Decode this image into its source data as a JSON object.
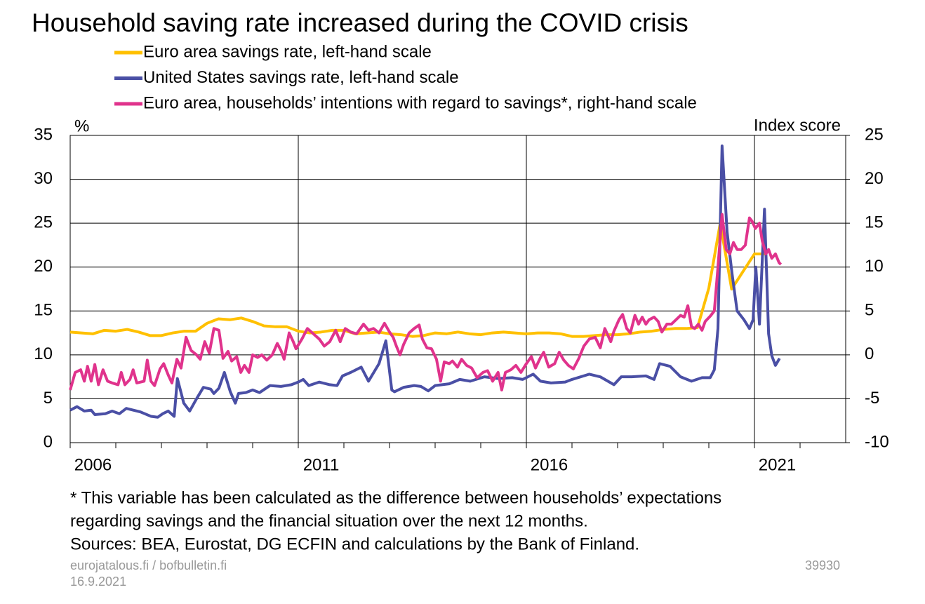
{
  "chart_data": {
    "type": "line",
    "title": "Household saving rate increased during the COVID crisis",
    "ylabel": "%",
    "y2label": "Index score",
    "xlim": [
      2006,
      2023
    ],
    "xticks": [
      2006,
      2011,
      2016,
      2021
    ],
    "xminorticks": [
      2007,
      2008,
      2009,
      2010,
      2012,
      2013,
      2014,
      2015,
      2017,
      2018,
      2019,
      2020,
      2022
    ],
    "ylim": [
      0,
      35
    ],
    "yticks": [
      0,
      5,
      10,
      15,
      20,
      25,
      30,
      35
    ],
    "y2lim": [
      -10,
      25
    ],
    "y2ticks": [
      -10,
      -5,
      0,
      5,
      10,
      15,
      20,
      25
    ],
    "grid": true,
    "series": [
      {
        "name": "Euro area savings rate, left-hand scale",
        "color": "#ffc000",
        "axis": "y",
        "x": [
          2006,
          2006.25,
          2006.5,
          2006.75,
          2007,
          2007.25,
          2007.5,
          2007.75,
          2008,
          2008.25,
          2008.5,
          2008.75,
          2009,
          2009.25,
          2009.5,
          2009.75,
          2010,
          2010.25,
          2010.5,
          2010.75,
          2011,
          2011.25,
          2011.5,
          2011.75,
          2012,
          2012.25,
          2012.5,
          2012.75,
          2013,
          2013.25,
          2013.5,
          2013.75,
          2014,
          2014.25,
          2014.5,
          2014.75,
          2015,
          2015.25,
          2015.5,
          2015.75,
          2016,
          2016.25,
          2016.5,
          2016.75,
          2017,
          2017.25,
          2017.5,
          2017.75,
          2018,
          2018.25,
          2018.5,
          2018.75,
          2019,
          2019.25,
          2019.5,
          2019.75,
          2020,
          2020.25,
          2020.5,
          2020.75,
          2021,
          2021.25
        ],
        "values": [
          12.6,
          12.5,
          12.4,
          12.8,
          12.7,
          12.9,
          12.6,
          12.2,
          12.2,
          12.5,
          12.7,
          12.7,
          13.6,
          14.1,
          14.0,
          14.2,
          13.8,
          13.3,
          13.2,
          13.2,
          12.7,
          12.5,
          12.6,
          12.8,
          12.8,
          12.4,
          12.5,
          12.6,
          12.4,
          12.3,
          12.1,
          12.2,
          12.5,
          12.4,
          12.6,
          12.4,
          12.3,
          12.5,
          12.6,
          12.5,
          12.4,
          12.5,
          12.5,
          12.4,
          12.1,
          12.1,
          12.2,
          12.3,
          12.3,
          12.4,
          12.6,
          12.7,
          12.9,
          13.0,
          13.0,
          13.1,
          17.6,
          25.0,
          17.5,
          19.5,
          21.5,
          21.5
        ]
      },
      {
        "name": "United States savings rate, left-hand scale",
        "color": "#4a4fa5",
        "axis": "y",
        "x": [
          2006,
          2006.15,
          2006.31,
          2006.46,
          2006.54,
          2006.77,
          2006.92,
          2007.08,
          2007.23,
          2007.54,
          2007.77,
          2007.92,
          2008.03,
          2008.15,
          2008.28,
          2008.35,
          2008.49,
          2008.62,
          2008.77,
          2008.92,
          2009.08,
          2009.15,
          2009.26,
          2009.38,
          2009.51,
          2009.62,
          2009.69,
          2009.85,
          2010,
          2010.15,
          2010.38,
          2010.62,
          2010.85,
          2011,
          2011.11,
          2011.23,
          2011.46,
          2011.69,
          2011.85,
          2011.97,
          2012.15,
          2012.38,
          2012.54,
          2012.77,
          2012.92,
          2013.05,
          2013.11,
          2013.31,
          2013.54,
          2013.69,
          2013.85,
          2014,
          2014.31,
          2014.54,
          2014.77,
          2015.08,
          2015.38,
          2015.69,
          2015.92,
          2016.15,
          2016.31,
          2016.54,
          2016.85,
          2017,
          2017.38,
          2017.62,
          2017.92,
          2018.08,
          2018.31,
          2018.62,
          2018.8,
          2018.92,
          2019.15,
          2019.38,
          2019.62,
          2019.85,
          2020.03,
          2020.12,
          2020.2,
          2020.29,
          2020.4,
          2020.51,
          2020.62,
          2020.77,
          2020.89,
          2020.97,
          2021.03,
          2021.11,
          2021.22,
          2021.31,
          2021.38,
          2021.46,
          2021.55
        ],
        "values": [
          3.7,
          4.1,
          3.6,
          3.7,
          3.2,
          3.3,
          3.6,
          3.3,
          3.9,
          3.5,
          3.0,
          2.9,
          3.3,
          3.6,
          3.0,
          7.3,
          4.5,
          3.6,
          5.0,
          6.3,
          6.1,
          5.6,
          6.2,
          8.0,
          5.8,
          4.5,
          5.6,
          5.7,
          6.0,
          5.7,
          6.5,
          6.4,
          6.6,
          6.9,
          7.2,
          6.5,
          6.9,
          6.6,
          6.5,
          7.6,
          8.0,
          8.6,
          7.0,
          9.0,
          11.6,
          6.0,
          5.8,
          6.3,
          6.5,
          6.4,
          5.9,
          6.5,
          6.7,
          7.2,
          7.0,
          7.5,
          7.3,
          7.4,
          7.2,
          7.8,
          7.0,
          6.8,
          6.9,
          7.2,
          7.8,
          7.5,
          6.6,
          7.5,
          7.5,
          7.6,
          7.2,
          9.0,
          8.7,
          7.5,
          7.0,
          7.4,
          7.4,
          8.3,
          13.0,
          33.8,
          24.0,
          19.2,
          15.0,
          14.0,
          13.0,
          14.0,
          20.0,
          13.5,
          26.6,
          12.4,
          9.9,
          8.8,
          9.6
        ]
      },
      {
        "name": "Euro area, households’ intentions with regard to savings*, right-hand scale",
        "color": "#e0338c",
        "axis": "y2",
        "x": [
          2006,
          2006.11,
          2006.23,
          2006.31,
          2006.38,
          2006.46,
          2006.54,
          2006.62,
          2006.72,
          2006.82,
          2006.92,
          2007.05,
          2007.12,
          2007.2,
          2007.31,
          2007.38,
          2007.46,
          2007.62,
          2007.69,
          2007.77,
          2007.85,
          2007.97,
          2008.05,
          2008.15,
          2008.23,
          2008.34,
          2008.43,
          2008.54,
          2008.65,
          2008.77,
          2008.85,
          2008.95,
          2009.05,
          2009.15,
          2009.26,
          2009.35,
          2009.46,
          2009.54,
          2009.65,
          2009.74,
          2009.82,
          2009.92,
          2010,
          2010.11,
          2010.2,
          2010.31,
          2010.43,
          2010.54,
          2010.62,
          2010.69,
          2010.8,
          2010.89,
          2010.95,
          2011.08,
          2011.2,
          2011.31,
          2011.46,
          2011.57,
          2011.69,
          2011.82,
          2011.92,
          2012.03,
          2012.15,
          2012.28,
          2012.43,
          2012.54,
          2012.65,
          2012.77,
          2012.89,
          2013,
          2013.08,
          2013.15,
          2013.23,
          2013.31,
          2013.43,
          2013.54,
          2013.65,
          2013.72,
          2013.82,
          2013.92,
          2014.03,
          2014.12,
          2014.2,
          2014.31,
          2014.38,
          2014.49,
          2014.58,
          2014.69,
          2014.8,
          2014.92,
          2015.05,
          2015.15,
          2015.26,
          2015.38,
          2015.46,
          2015.54,
          2015.66,
          2015.77,
          2015.88,
          2016,
          2016.11,
          2016.2,
          2016.31,
          2016.38,
          2016.49,
          2016.62,
          2016.72,
          2016.82,
          2016.92,
          2017.03,
          2017.15,
          2017.26,
          2017.38,
          2017.51,
          2017.62,
          2017.72,
          2017.85,
          2017.92,
          2018.03,
          2018.11,
          2018.2,
          2018.28,
          2018.38,
          2018.46,
          2018.54,
          2018.62,
          2018.69,
          2018.8,
          2018.89,
          2018.97,
          2019.08,
          2019.18,
          2019.28,
          2019.38,
          2019.46,
          2019.54,
          2019.62,
          2019.69,
          2019.77,
          2019.85,
          2019.92,
          2020.03,
          2020.12,
          2020.2,
          2020.29,
          2020.38,
          2020.46,
          2020.54,
          2020.62,
          2020.71,
          2020.8,
          2020.89,
          2020.95,
          2021.02,
          2021.11,
          2021.17,
          2021.25,
          2021.31,
          2021.38,
          2021.46,
          2021.54,
          2021.58
        ],
        "values": [
          -4.0,
          -2.0,
          -1.7,
          -3.0,
          -1.3,
          -3.0,
          -1.1,
          -3.4,
          -1.7,
          -3.0,
          -3.2,
          -3.4,
          -2.0,
          -3.4,
          -2.8,
          -1.7,
          -3.2,
          -3.0,
          -0.6,
          -3.0,
          -3.5,
          -1.6,
          -1.0,
          -2.3,
          -3.2,
          -0.5,
          -1.5,
          2.0,
          0.5,
          0.0,
          -0.5,
          1.5,
          0.2,
          3.0,
          2.8,
          -0.4,
          0.4,
          -0.7,
          -0.2,
          -2.0,
          -1.2,
          -2.0,
          0.0,
          -0.3,
          0.0,
          -0.6,
          0.0,
          1.3,
          0.5,
          -0.5,
          2.5,
          1.5,
          0.7,
          1.8,
          3.0,
          2.5,
          1.8,
          1.0,
          1.5,
          2.8,
          1.5,
          3.0,
          2.6,
          2.4,
          3.5,
          2.8,
          3.0,
          2.5,
          3.6,
          2.6,
          2.0,
          1.0,
          0.0,
          1.2,
          2.5,
          3.0,
          3.4,
          1.8,
          0.8,
          0.7,
          -0.5,
          -3.0,
          -0.8,
          -1.0,
          -0.7,
          -1.4,
          -0.5,
          -1.2,
          -1.5,
          -2.6,
          -2.0,
          -1.8,
          -3.0,
          -2.0,
          -4.0,
          -2.0,
          -1.7,
          -1.2,
          -2.0,
          -1.0,
          -0.2,
          -1.5,
          -0.3,
          0.3,
          -1.4,
          -1.0,
          0.3,
          -0.6,
          -1.2,
          -1.6,
          -0.4,
          1.0,
          1.8,
          2.0,
          0.8,
          3.0,
          1.5,
          2.7,
          4.0,
          4.6,
          3.0,
          2.5,
          4.5,
          3.5,
          4.3,
          3.5,
          4.0,
          4.3,
          3.8,
          2.6,
          3.5,
          3.5,
          4.0,
          4.5,
          4.3,
          5.6,
          3.2,
          3.0,
          3.5,
          2.8,
          3.8,
          4.4,
          5.0,
          10.0,
          16.0,
          12.0,
          11.5,
          12.8,
          12.0,
          12.0,
          12.5,
          15.6,
          15.2,
          14.4,
          15.0,
          13.0,
          11.5,
          12.0,
          11.0,
          11.5,
          10.5,
          10.3
        ]
      }
    ]
  },
  "notes": [
    "* This variable has been calculated as the difference between households’ expectations",
    "regarding savings and the financial situation over the next 12 months.",
    "Sources: BEA, Eurostat, DG ECFIN and calculations by the Bank of Finland."
  ],
  "footer": {
    "site": "eurojatalous.fi / bofbulletin.fi",
    "date": "16.9.2021",
    "id": "39930"
  }
}
